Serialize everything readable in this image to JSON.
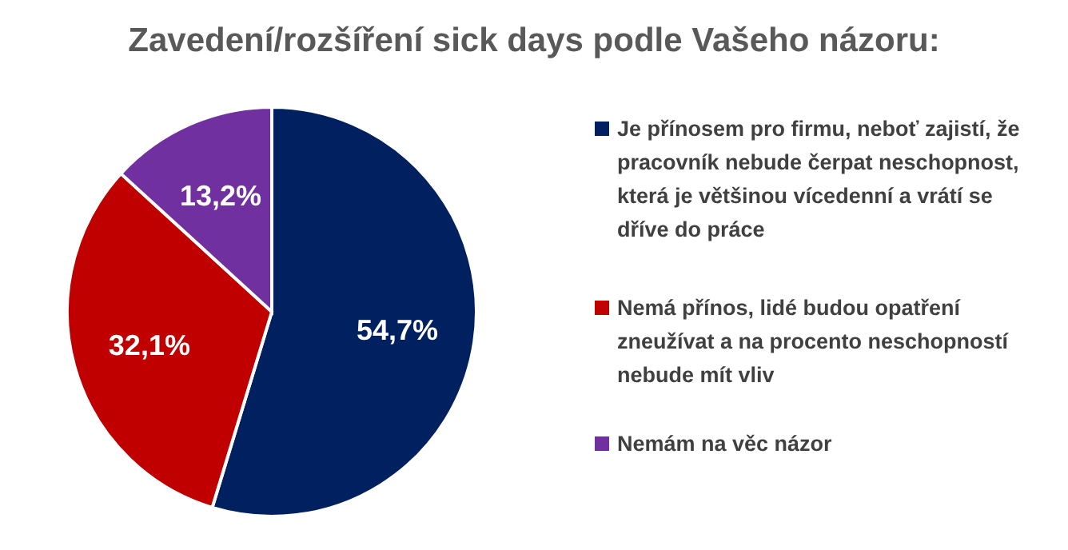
{
  "chart_data": {
    "type": "pie",
    "title": "Zavedení/rozšíření sick days podle Vašeho názoru:",
    "categories": [
      "Je přínosem pro firmu, neboť zajistí, že pracovník nebude čerpat neschopnost, která je většinou vícedenní a vrátí se dříve do práce",
      "Nemá přínos, lidé budou opatření zneužívat a na procento neschopností nebude mít vliv",
      "Nemám na věc názor"
    ],
    "values": [
      54.7,
      32.1,
      13.2
    ],
    "colors": [
      "#002060",
      "#c00000",
      "#7030a0"
    ],
    "value_labels": [
      "54,7%",
      "32,1%",
      "13,2%"
    ],
    "legend": "right"
  }
}
